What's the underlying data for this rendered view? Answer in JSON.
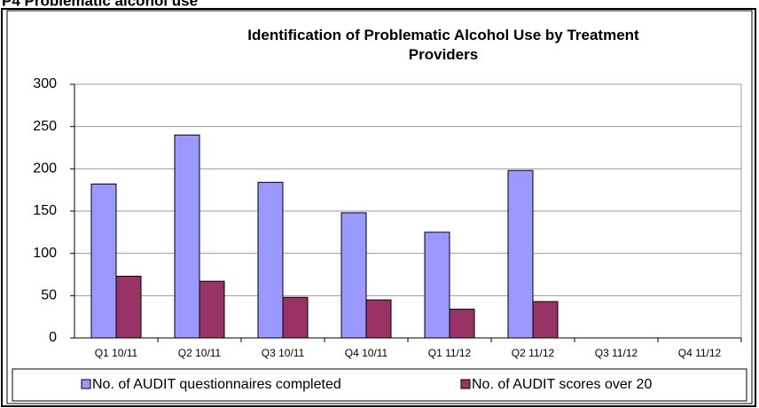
{
  "header": {
    "title": "P4 Problematic alcohol use"
  },
  "chart_data": {
    "type": "bar",
    "title": "Identification of Problematic Alcohol Use by Treatment Providers",
    "categories": [
      "Q1 10/11",
      "Q2 10/11",
      "Q3 10/11",
      "Q4 10/11",
      "Q1 11/12",
      "Q2 11/12",
      "Q3 11/12",
      "Q4 11/12"
    ],
    "series": [
      {
        "name": "No. of AUDIT questionnaires completed",
        "color": "#9999ff",
        "values": [
          182,
          240,
          184,
          148,
          125,
          198,
          null,
          null
        ]
      },
      {
        "name": "No. of AUDIT scores over 20",
        "color": "#993366",
        "values": [
          73,
          67,
          48,
          45,
          34,
          43,
          null,
          null
        ]
      }
    ],
    "ylim": [
      0,
      300
    ],
    "yticks": [
      0,
      50,
      100,
      150,
      200,
      250,
      300
    ],
    "grid": true,
    "legend": "bottom"
  }
}
